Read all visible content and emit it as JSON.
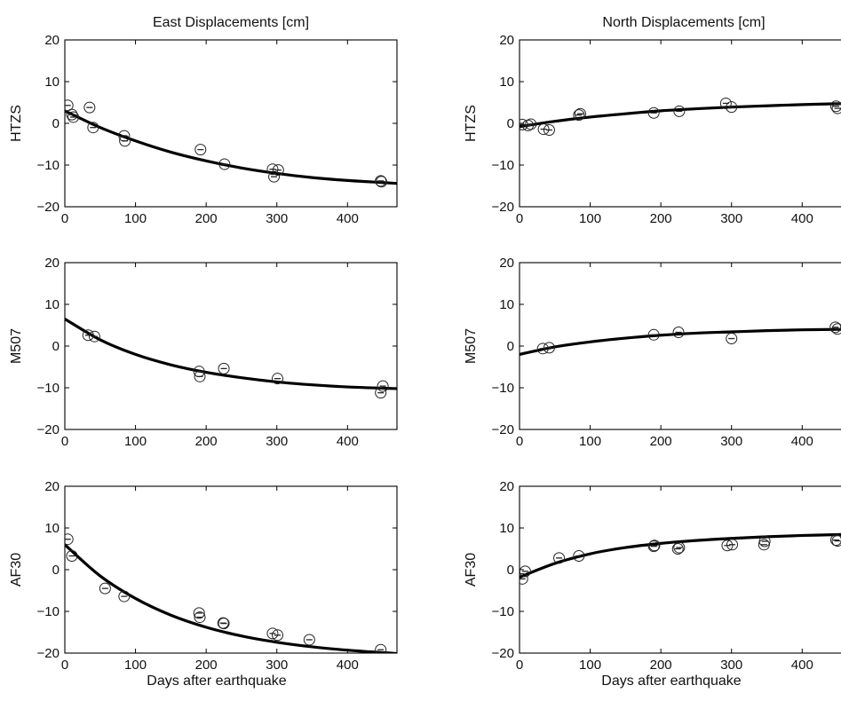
{
  "columns": [
    {
      "title": "East Displacements [cm]"
    },
    {
      "title": "North Displacements [cm]"
    }
  ],
  "chart_data": [
    {
      "type": "scatter",
      "station": "HTZS",
      "component": "East",
      "title": "East Displacements [cm]",
      "ylabel": "HTZS",
      "xlabel": "",
      "xlim": [
        0,
        470
      ],
      "ylim": [
        -20,
        20
      ],
      "xticks": [
        "0",
        "100",
        "200",
        "300",
        "400"
      ],
      "yticks": [
        "−20",
        "−10",
        "0",
        "10",
        "20"
      ],
      "observed": {
        "x": [
          4,
          10,
          12,
          35,
          40,
          84,
          85,
          192,
          226,
          294,
          296,
          302,
          447,
          448
        ],
        "y": [
          4.3,
          2.1,
          1.5,
          3.8,
          -1.0,
          -3.0,
          -4.2,
          -6.3,
          -9.8,
          -11.0,
          -12.8,
          -11.2,
          -13.8,
          -14.0
        ]
      },
      "model": {
        "x": [
          0,
          50,
          100,
          150,
          200,
          250,
          300,
          350,
          400,
          450,
          470
        ],
        "y": [
          3.0,
          -1.0,
          -4.2,
          -6.9,
          -9.0,
          -10.7,
          -12.0,
          -13.0,
          -13.7,
          -14.2,
          -14.4
        ]
      }
    },
    {
      "type": "scatter",
      "station": "HTZS",
      "component": "North",
      "title": "North Displacements [cm]",
      "ylabel": "HTZS",
      "xlabel": "",
      "xlim": [
        0,
        470
      ],
      "ylim": [
        -20,
        20
      ],
      "xticks": [
        "0",
        "100",
        "200",
        "300",
        "400"
      ],
      "yticks": [
        "−20",
        "−10",
        "0",
        "10",
        "20"
      ],
      "observed": {
        "x": [
          4,
          12,
          16,
          34,
          42,
          84,
          86,
          190,
          226,
          292,
          300,
          448,
          450
        ],
        "y": [
          -0.3,
          -0.5,
          -0.2,
          -1.4,
          -1.6,
          2.0,
          2.3,
          2.5,
          2.9,
          4.8,
          3.9,
          4.1,
          3.6
        ]
      },
      "model": {
        "x": [
          0,
          50,
          100,
          150,
          200,
          250,
          300,
          350,
          400,
          450,
          470
        ],
        "y": [
          -0.8,
          0.5,
          1.5,
          2.3,
          3.0,
          3.5,
          3.9,
          4.2,
          4.5,
          4.7,
          4.8
        ]
      }
    },
    {
      "type": "scatter",
      "station": "M507",
      "component": "East",
      "ylabel": "M507",
      "xlabel": "",
      "xlim": [
        0,
        470
      ],
      "ylim": [
        -20,
        20
      ],
      "xticks": [
        "0",
        "100",
        "200",
        "300",
        "400"
      ],
      "yticks": [
        "−20",
        "−10",
        "0",
        "10",
        "20"
      ],
      "observed": {
        "x": [
          33,
          42,
          190,
          191,
          225,
          301,
          447,
          450
        ],
        "y": [
          2.6,
          2.3,
          -6.1,
          -7.3,
          -5.4,
          -7.8,
          -11.2,
          -9.6
        ]
      },
      "model": {
        "x": [
          0,
          50,
          100,
          150,
          200,
          250,
          300,
          350,
          400,
          450,
          470
        ],
        "y": [
          6.5,
          1.5,
          -2.0,
          -4.5,
          -6.3,
          -7.6,
          -8.6,
          -9.3,
          -9.8,
          -10.1,
          -10.2
        ]
      }
    },
    {
      "type": "scatter",
      "station": "M507",
      "component": "North",
      "ylabel": "M507",
      "xlabel": "",
      "xlim": [
        0,
        470
      ],
      "ylim": [
        -20,
        20
      ],
      "xticks": [
        "0",
        "100",
        "200",
        "300",
        "400"
      ],
      "yticks": [
        "−20",
        "−10",
        "0",
        "10",
        "20"
      ],
      "observed": {
        "x": [
          33,
          42,
          190,
          225,
          300,
          447,
          450
        ],
        "y": [
          -0.6,
          -0.4,
          2.7,
          3.3,
          1.8,
          4.5,
          4.1
        ]
      },
      "model": {
        "x": [
          0,
          50,
          100,
          150,
          200,
          250,
          300,
          350,
          400,
          450,
          470
        ],
        "y": [
          -2.0,
          -0.2,
          1.0,
          1.9,
          2.6,
          3.1,
          3.4,
          3.7,
          3.9,
          4.0,
          4.1
        ]
      }
    },
    {
      "type": "scatter",
      "station": "AF30",
      "component": "East",
      "ylabel": "AF30",
      "xlabel": "Days after earthquake",
      "xlim": [
        0,
        470
      ],
      "ylim": [
        -20,
        20
      ],
      "xticks": [
        "0",
        "100",
        "200",
        "300",
        "400"
      ],
      "yticks": [
        "−20",
        "−10",
        "0",
        "10",
        "20"
      ],
      "observed": {
        "x": [
          4,
          10,
          57,
          84,
          190,
          191,
          224,
          225,
          294,
          301,
          346,
          447
        ],
        "y": [
          7.3,
          3.3,
          -4.5,
          -6.4,
          -10.4,
          -11.4,
          -12.8,
          -12.9,
          -15.3,
          -15.7,
          -16.8,
          -19.2
        ]
      },
      "model": {
        "x": [
          0,
          50,
          100,
          150,
          200,
          250,
          300,
          350,
          400,
          450,
          470
        ],
        "y": [
          6.0,
          -1.5,
          -6.9,
          -10.9,
          -13.8,
          -15.9,
          -17.4,
          -18.5,
          -19.3,
          -19.9,
          -20.1
        ]
      }
    },
    {
      "type": "scatter",
      "station": "AF30",
      "component": "North",
      "ylabel": "AF30",
      "xlabel": "Days after earthquake",
      "xlim": [
        0,
        470
      ],
      "ylim": [
        -20,
        20
      ],
      "xticks": [
        "0",
        "100",
        "200",
        "300",
        "400"
      ],
      "yticks": [
        "−20",
        "−10",
        "0",
        "10",
        "20"
      ],
      "observed": {
        "x": [
          4,
          8,
          56,
          84,
          190,
          191,
          224,
          226,
          294,
          301,
          346,
          347,
          448,
          450
        ],
        "y": [
          -2.2,
          -0.4,
          2.8,
          3.3,
          5.6,
          5.8,
          5.0,
          5.3,
          5.8,
          6.0,
          6.0,
          6.8,
          7.1,
          6.9
        ]
      },
      "model": {
        "x": [
          0,
          50,
          100,
          150,
          200,
          250,
          300,
          350,
          400,
          450,
          470
        ],
        "y": [
          -1.8,
          1.5,
          3.8,
          5.3,
          6.3,
          7.0,
          7.5,
          7.9,
          8.2,
          8.4,
          8.5
        ]
      }
    }
  ]
}
